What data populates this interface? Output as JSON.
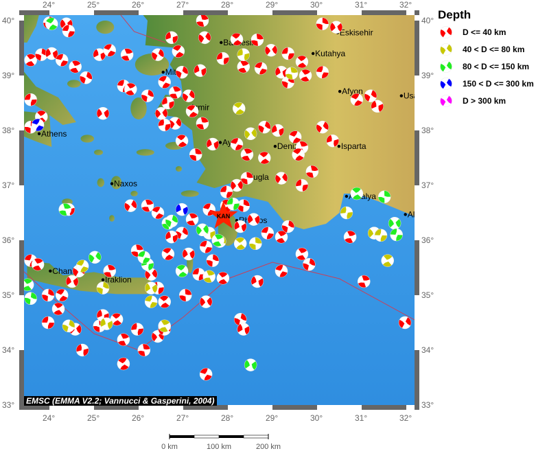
{
  "map": {
    "lon_range": [
      23.45,
      32.2
    ],
    "lat_range": [
      33.1,
      40.1
    ],
    "lon_ticks": [
      "24°",
      "25°",
      "26°",
      "27°",
      "28°",
      "29°",
      "30°",
      "31°",
      "32°"
    ],
    "lat_ticks": [
      "33°",
      "34°",
      "35°",
      "36°",
      "37°",
      "38°",
      "39°",
      "40°"
    ],
    "colors": {
      "sea": "#3a98e8",
      "land_low": "#4f8a3a",
      "land_high": "#d4bf62",
      "plate_boundary": "#c8405a"
    },
    "credit": "EMSC (EMMA V2.2; Vannucci & Gasperini, 2004)",
    "scale_bar": {
      "labels": [
        "0 km",
        "100 km",
        "200 km"
      ]
    },
    "event_marker": {
      "label": "KAN",
      "lon": 27.9,
      "lat": 36.44,
      "color": "#ff2200",
      "icon": "star-icon"
    }
  },
  "legend": {
    "title": "Depth",
    "items": [
      {
        "label": "D <= 40 km",
        "color": "#ff0000"
      },
      {
        "label": "40 < D <= 80 km",
        "color": "#c8c800"
      },
      {
        "label": "80 < D <= 150 km",
        "color": "#22ee22"
      },
      {
        "label": "150 < D <= 300 km",
        "color": "#0000ff"
      },
      {
        "label": "D > 300 km",
        "color": "#ff00ff"
      }
    ]
  },
  "cities": [
    {
      "name": "Balikesir",
      "lon": 27.85,
      "lat": 39.6
    },
    {
      "name": "Eskisehir",
      "lon": 30.46,
      "lat": 39.78
    },
    {
      "name": "Kutahya",
      "lon": 29.91,
      "lat": 39.4
    },
    {
      "name": "Mitilini",
      "lon": 26.55,
      "lat": 39.06
    },
    {
      "name": "Izmir",
      "lon": 27.14,
      "lat": 38.42
    },
    {
      "name": "Afyon",
      "lon": 30.51,
      "lat": 38.71
    },
    {
      "name": "Usak",
      "lon": 31.89,
      "lat": 38.63
    },
    {
      "name": "Athens",
      "lon": 23.77,
      "lat": 37.94
    },
    {
      "name": "Aydin",
      "lon": 27.83,
      "lat": 37.78
    },
    {
      "name": "Denizli",
      "lon": 29.06,
      "lat": 37.71
    },
    {
      "name": "Isparta",
      "lon": 30.49,
      "lat": 37.71
    },
    {
      "name": "Mugla",
      "lon": 28.37,
      "lat": 37.15
    },
    {
      "name": "Naxos",
      "lon": 25.4,
      "lat": 37.03
    },
    {
      "name": "Antalya",
      "lon": 30.66,
      "lat": 36.8
    },
    {
      "name": "Rhodos",
      "lon": 28.2,
      "lat": 36.36
    },
    {
      "name": "Alanya",
      "lon": 31.98,
      "lat": 36.47
    },
    {
      "name": "Chania",
      "lon": 24.02,
      "lat": 35.44
    },
    {
      "name": "Iraklion",
      "lon": 25.2,
      "lat": 35.28
    }
  ],
  "events_depth_class_index": "0=D<=40,1=40-80,2=80-150,3=150-300",
  "events": [
    [
      24.0,
      39.96,
      0
    ],
    [
      24.38,
      39.94,
      0
    ],
    [
      24.43,
      39.81,
      0
    ],
    [
      23.58,
      39.28,
      0
    ],
    [
      23.82,
      39.38,
      0
    ],
    [
      24.05,
      39.4,
      0
    ],
    [
      24.28,
      39.28,
      0
    ],
    [
      24.58,
      39.16,
      0
    ],
    [
      24.82,
      38.96,
      0
    ],
    [
      25.12,
      39.38,
      0
    ],
    [
      25.35,
      39.46,
      0
    ],
    [
      25.74,
      39.38,
      0
    ],
    [
      26.43,
      39.38,
      0
    ],
    [
      26.74,
      39.69,
      0
    ],
    [
      26.89,
      39.44,
      0
    ],
    [
      27.43,
      40.0,
      0
    ],
    [
      27.48,
      39.69,
      0
    ],
    [
      27.89,
      39.31,
      0
    ],
    [
      28.2,
      39.66,
      0
    ],
    [
      28.66,
      39.65,
      0
    ],
    [
      28.97,
      39.46,
      0
    ],
    [
      29.35,
      39.4,
      0
    ],
    [
      29.66,
      39.25,
      0
    ],
    [
      30.12,
      39.94,
      0
    ],
    [
      30.43,
      39.88,
      0
    ],
    [
      30.12,
      39.06,
      0
    ],
    [
      29.74,
      39.0,
      0
    ],
    [
      29.35,
      38.88,
      0
    ],
    [
      29.2,
      39.06,
      0
    ],
    [
      28.74,
      39.13,
      0
    ],
    [
      28.35,
      39.16,
      0
    ],
    [
      26.97,
      39.06,
      0
    ],
    [
      27.38,
      39.09,
      0
    ],
    [
      26.58,
      38.88,
      0
    ],
    [
      26.82,
      38.69,
      0
    ],
    [
      27.12,
      38.63,
      0
    ],
    [
      26.66,
      38.5,
      0
    ],
    [
      27.2,
      38.35,
      0
    ],
    [
      27.43,
      38.13,
      0
    ],
    [
      26.82,
      38.13,
      0
    ],
    [
      26.58,
      38.1,
      0
    ],
    [
      26.97,
      37.81,
      0
    ],
    [
      27.28,
      37.56,
      0
    ],
    [
      26.51,
      38.31,
      0
    ],
    [
      23.58,
      38.56,
      0
    ],
    [
      23.82,
      38.25,
      0
    ],
    [
      23.58,
      38.06,
      0
    ],
    [
      25.2,
      38.31,
      0
    ],
    [
      25.66,
      38.81,
      0
    ],
    [
      25.82,
      38.75,
      0
    ],
    [
      26.2,
      38.63,
      0
    ],
    [
      27.66,
      37.75,
      0
    ],
    [
      28.2,
      37.75,
      0
    ],
    [
      28.43,
      37.56,
      0
    ],
    [
      28.82,
      38.06,
      0
    ],
    [
      29.12,
      38.0,
      0
    ],
    [
      29.51,
      37.88,
      0
    ],
    [
      29.66,
      37.69,
      0
    ],
    [
      30.12,
      38.06,
      0
    ],
    [
      30.35,
      37.81,
      0
    ],
    [
      29.58,
      37.56,
      0
    ],
    [
      29.89,
      37.25,
      0
    ],
    [
      29.2,
      37.13,
      0
    ],
    [
      29.66,
      37.0,
      0
    ],
    [
      28.82,
      37.5,
      0
    ],
    [
      28.43,
      37.13,
      0
    ],
    [
      28.2,
      37.0,
      0
    ],
    [
      27.97,
      36.88,
      0
    ],
    [
      27.97,
      36.63,
      0
    ],
    [
      28.35,
      36.63,
      0
    ],
    [
      28.58,
      36.38,
      0
    ],
    [
      28.89,
      36.13,
      0
    ],
    [
      29.2,
      36.06,
      0
    ],
    [
      29.35,
      36.25,
      0
    ],
    [
      28.28,
      36.25,
      0
    ],
    [
      27.58,
      36.56,
      0
    ],
    [
      27.2,
      36.38,
      0
    ],
    [
      26.97,
      36.13,
      0
    ],
    [
      26.74,
      36.06,
      0
    ],
    [
      26.43,
      36.5,
      0
    ],
    [
      26.2,
      36.63,
      0
    ],
    [
      25.82,
      36.63,
      0
    ],
    [
      24.43,
      36.56,
      0
    ],
    [
      26.66,
      35.75,
      0
    ],
    [
      25.97,
      35.81,
      0
    ],
    [
      26.28,
      35.38,
      0
    ],
    [
      26.43,
      35.13,
      0
    ],
    [
      26.58,
      34.88,
      0
    ],
    [
      27.05,
      35.0,
      0
    ],
    [
      27.51,
      34.88,
      0
    ],
    [
      27.35,
      35.38,
      0
    ],
    [
      27.89,
      35.31,
      0
    ],
    [
      27.66,
      35.63,
      0
    ],
    [
      27.12,
      35.75,
      0
    ],
    [
      27.51,
      35.88,
      0
    ],
    [
      29.66,
      35.75,
      0
    ],
    [
      29.82,
      35.56,
      0
    ],
    [
      28.66,
      35.25,
      0
    ],
    [
      29.2,
      35.44,
      0
    ],
    [
      30.74,
      36.06,
      0
    ],
    [
      31.2,
      38.63,
      0
    ],
    [
      31.35,
      38.44,
      0
    ],
    [
      30.89,
      38.56,
      0
    ],
    [
      31.05,
      35.25,
      0
    ],
    [
      31.97,
      34.5,
      0
    ],
    [
      24.74,
      34.0,
      0
    ],
    [
      25.66,
      33.75,
      0
    ],
    [
      26.12,
      34.0,
      0
    ],
    [
      26.43,
      34.25,
      0
    ],
    [
      25.97,
      34.38,
      0
    ],
    [
      25.51,
      34.56,
      0
    ],
    [
      25.12,
      34.44,
      0
    ],
    [
      24.58,
      34.38,
      0
    ],
    [
      23.97,
      34.5,
      0
    ],
    [
      24.2,
      34.75,
      0
    ],
    [
      23.97,
      35.0,
      0
    ],
    [
      24.51,
      35.25,
      0
    ],
    [
      23.58,
      35.63,
      0
    ],
    [
      23.74,
      35.56,
      0
    ],
    [
      28.28,
      34.56,
      0
    ],
    [
      28.35,
      34.38,
      0
    ],
    [
      27.51,
      33.56,
      0
    ],
    [
      25.66,
      34.19,
      0
    ],
    [
      26.58,
      34.38,
      0
    ],
    [
      25.2,
      34.63,
      0
    ],
    [
      24.28,
      35.0,
      0
    ],
    [
      25.35,
      35.44,
      0
    ],
    [
      24.66,
      35.44,
      0
    ],
    [
      28.35,
      39.38,
      1
    ],
    [
      28.25,
      38.4,
      1
    ],
    [
      29.43,
      39.04,
      1
    ],
    [
      28.51,
      37.94,
      1
    ],
    [
      30.66,
      36.5,
      1
    ],
    [
      28.28,
      35.94,
      1
    ],
    [
      28.62,
      35.94,
      1
    ],
    [
      31.28,
      36.13,
      1
    ],
    [
      31.43,
      36.09,
      1
    ],
    [
      31.58,
      35.63,
      1
    ],
    [
      25.2,
      35.13,
      1
    ],
    [
      26.28,
      35.13,
      1
    ],
    [
      26.28,
      34.88,
      1
    ],
    [
      26.58,
      34.44,
      1
    ],
    [
      24.43,
      34.44,
      1
    ],
    [
      25.28,
      34.48,
      1
    ],
    [
      24.74,
      35.53,
      1
    ],
    [
      27.58,
      35.34,
      1
    ],
    [
      27.82,
      35.98,
      1
    ],
    [
      27.58,
      36.13,
      1
    ],
    [
      24.05,
      39.94,
      2
    ],
    [
      24.35,
      36.56,
      2
    ],
    [
      25.02,
      35.69,
      2
    ],
    [
      26.2,
      35.56,
      2
    ],
    [
      26.97,
      35.44,
      2
    ],
    [
      26.66,
      36.31,
      2
    ],
    [
      27.43,
      36.19,
      2
    ],
    [
      28.12,
      36.66,
      2
    ],
    [
      30.89,
      36.85,
      2
    ],
    [
      31.51,
      36.79,
      2
    ],
    [
      31.74,
      36.31,
      2
    ],
    [
      31.78,
      36.1,
      2
    ],
    [
      23.51,
      35.19,
      2
    ],
    [
      23.58,
      34.94,
      2
    ],
    [
      28.51,
      33.73,
      2
    ],
    [
      26.12,
      35.69,
      2
    ],
    [
      27.78,
      36.0,
      2
    ],
    [
      26.74,
      36.35,
      2
    ],
    [
      26.97,
      36.56,
      3
    ],
    [
      23.74,
      38.1,
      3
    ]
  ]
}
